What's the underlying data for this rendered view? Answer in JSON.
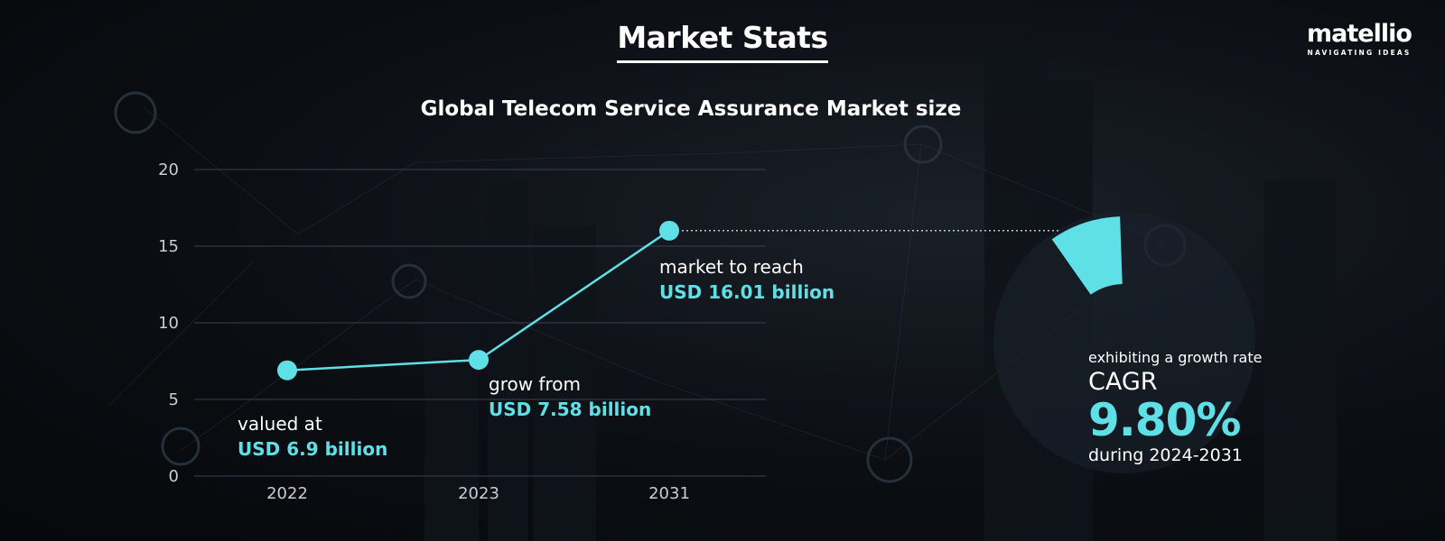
{
  "header": {
    "title": "Market Stats"
  },
  "logo": {
    "name": "matellio",
    "tagline": "NAVIGATING IDEAS"
  },
  "chart_data": {
    "type": "line",
    "title": "Global Telecom Service Assurance Market size",
    "categories": [
      "2022",
      "2023",
      "2031"
    ],
    "values": [
      6.9,
      7.58,
      16.01
    ],
    "ylim": [
      0,
      20
    ],
    "yticks": [
      "0",
      "5",
      "10",
      "15",
      "20"
    ],
    "grid": true,
    "line_color": "#5fe0e6",
    "annotations": [
      {
        "text": "valued at",
        "value": "USD 6.9 billion"
      },
      {
        "text": "grow from",
        "value": "USD 7.58 billion"
      },
      {
        "text": "market to reach",
        "value": "USD 16.01 billion"
      }
    ]
  },
  "cagr": {
    "pre": "exhibiting a growth rate",
    "label": "CAGR",
    "value": "9.80%",
    "period": "during 2024-2031",
    "accent": "#5fe0e6"
  }
}
